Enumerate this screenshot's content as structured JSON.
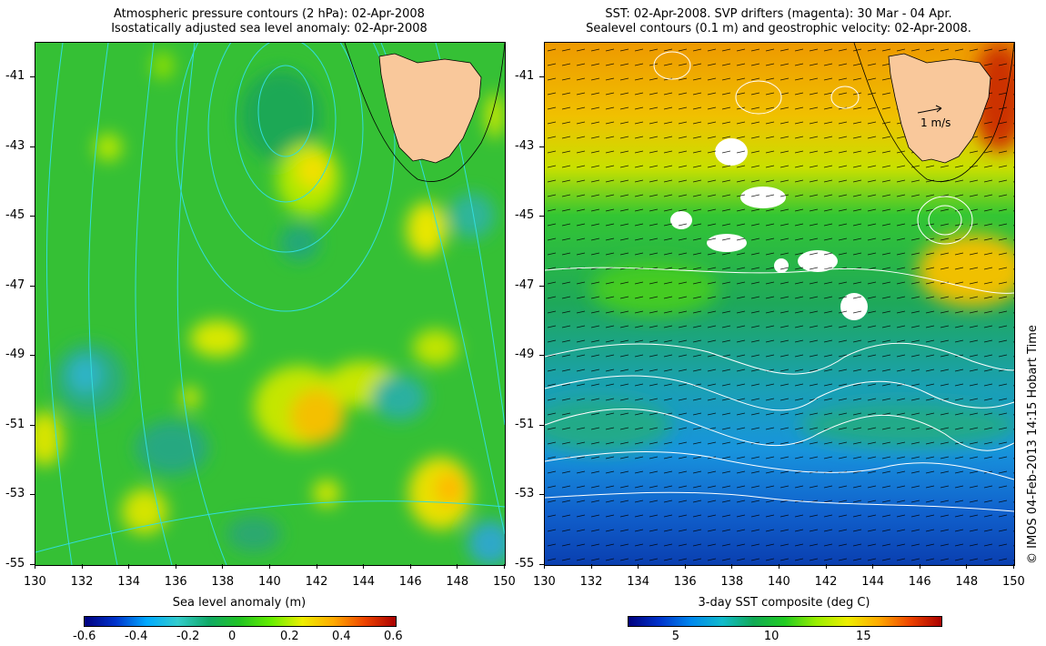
{
  "left_panel": {
    "title_line1": "Atmospheric pressure contours (2 hPa): 02-Apr-2008",
    "title_line2": "Isostatically adjusted sea level anomaly: 02-Apr-2008",
    "colorbar_title": "Sea level anomaly (m)",
    "colorbar_ticks": [
      "-0.6",
      "-0.4",
      "-0.2",
      "0",
      "0.2",
      "0.4",
      "0.6"
    ]
  },
  "right_panel": {
    "title_line1": "SST: 02-Apr-2008. SVP drifters (magenta): 30 Mar - 04 Apr.",
    "title_line2": "Sealevel contours (0.1 m) and geostrophic velocity: 02-Apr-2008.",
    "colorbar_title": "3-day SST composite (deg C)",
    "colorbar_ticks": [
      "5",
      "10",
      "15"
    ],
    "scale_label": "1 m/s"
  },
  "axes": {
    "x_ticks": [
      "130",
      "132",
      "134",
      "136",
      "138",
      "140",
      "142",
      "144",
      "146",
      "148",
      "150"
    ],
    "y_ticks": [
      "-41",
      "-43",
      "-45",
      "-47",
      "-49",
      "-51",
      "-53",
      "-55"
    ],
    "x_range": [
      130,
      150
    ],
    "y_range": [
      -55,
      -40
    ]
  },
  "credit": "© IMOS 04-Feb-2013 14:15 Hobart Time",
  "colors": {
    "land": "#f9c89b",
    "pressure_contour": "#33dddd",
    "sealevel_contour": "#ffffff",
    "vector": "#000000"
  }
}
